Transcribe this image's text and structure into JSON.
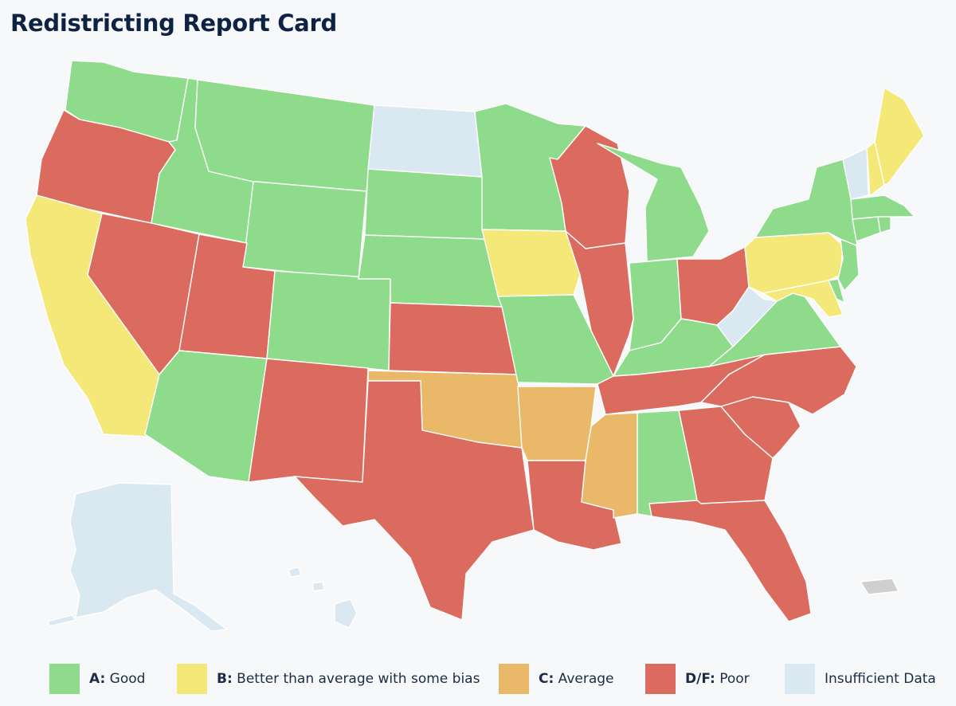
{
  "title": "Redistricting Report Card",
  "colors": {
    "A": "#8edc8b",
    "B": "#f4e878",
    "C": "#e9b969",
    "DF": "#db6b5f",
    "insufficient": "#dae8f2",
    "territory": "#cfcfcf"
  },
  "legend": [
    {
      "grade": "A:",
      "label": " Good",
      "color_key": "A"
    },
    {
      "grade": "B:",
      "label": " Better than average with some bias",
      "color_key": "B"
    },
    {
      "grade": "C:",
      "label": " Average",
      "color_key": "C"
    },
    {
      "grade": "D/F:",
      "label": " Poor",
      "color_key": "DF"
    },
    {
      "grade": "",
      "label": "Insufficient Data",
      "color_key": "insufficient"
    }
  ],
  "grades": {
    "WA": "A",
    "OR": "DF",
    "CA": "B",
    "ID": "A",
    "NV": "DF",
    "MT": "A",
    "WY": "A",
    "UT": "DF",
    "AZ": "A",
    "CO": "A",
    "NM": "DF",
    "ND": "insufficient",
    "SD": "A",
    "NE": "A",
    "KS": "DF",
    "OK": "C",
    "TX": "DF",
    "MN": "A",
    "IA": "B",
    "MO": "A",
    "AR": "C",
    "LA": "DF",
    "WI": "DF",
    "IL": "DF",
    "MI": "A",
    "IN": "A",
    "OH": "DF",
    "KY": "A",
    "TN": "DF",
    "MS": "C",
    "AL": "A",
    "GA": "DF",
    "FL": "DF",
    "SC": "DF",
    "NC": "DF",
    "VA": "A",
    "WV": "insufficient",
    "PA": "B",
    "NY": "A",
    "VT": "insufficient",
    "NH": "B",
    "ME": "B",
    "MA": "A",
    "CT": "A",
    "RI": "A",
    "NJ": "A",
    "DE": "A",
    "MD": "B",
    "AK": "insufficient",
    "HI": "insufficient",
    "PR": "territory"
  }
}
